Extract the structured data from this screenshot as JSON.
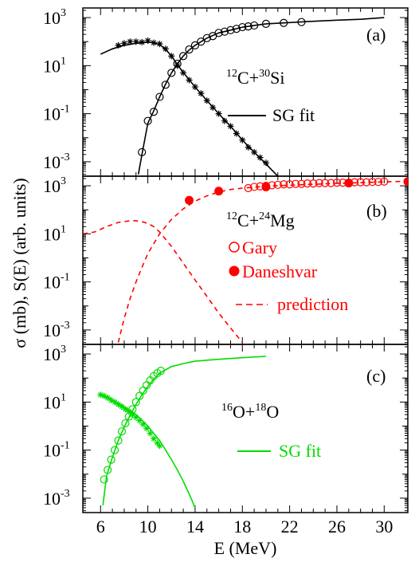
{
  "axes": {
    "xlabel": "E (MeV)",
    "ylabel": "σ (mb),  S(E) (arb. units)",
    "x_ticks": [
      "6",
      "10",
      "14",
      "18",
      "22",
      "26",
      "30"
    ],
    "x_tick_values": [
      6,
      10,
      14,
      18,
      22,
      26,
      30
    ],
    "y_ticks": [
      {
        "base": "10",
        "exp": "3"
      },
      {
        "base": "10",
        "exp": "1"
      },
      {
        "base": "10",
        "exp": "-1"
      },
      {
        "base": "10",
        "exp": "-3"
      }
    ]
  },
  "panels": [
    {
      "label": "(a)",
      "reaction": {
        "m1": "12",
        "e1": "C",
        "m2": "30",
        "e2": "Si"
      },
      "legend": [
        {
          "label": "SG fit",
          "style": "solid"
        }
      ],
      "color": "#000000"
    },
    {
      "label": "(b)",
      "reaction": {
        "m1": "12",
        "e1": "C",
        "m2": "24",
        "e2": "Mg"
      },
      "legend": [
        {
          "label": "Gary",
          "style": "open-circle"
        },
        {
          "label": "Daneshvar",
          "style": "filled-circle"
        },
        {
          "label": "prediction",
          "style": "dashed"
        }
      ],
      "color": "#ff0000"
    },
    {
      "label": "(c)",
      "reaction": {
        "m1": "16",
        "e1": "O",
        "m2": "18",
        "e2": "O"
      },
      "legend": [
        {
          "label": "SG fit",
          "style": "solid"
        }
      ],
      "color": "#00dd00"
    }
  ],
  "chart_data": [
    {
      "type": "line",
      "panel": "a",
      "xlim": [
        4.5,
        32
      ],
      "ylim_log10": [
        -3.6,
        3.4
      ],
      "series": [
        {
          "kind": "sigma-data",
          "marker": "open-circle",
          "x": [
            9.5,
            10.0,
            10.5,
            11.0,
            11.5,
            12.0,
            12.5,
            13.0,
            13.5,
            14.0,
            14.5,
            15.0,
            15.5,
            16.0,
            16.5,
            17.0,
            17.5,
            18.0,
            18.5,
            19.0,
            20.0,
            21.5,
            23.0
          ],
          "y": [
            0.0025,
            0.05,
            0.12,
            0.5,
            1.6,
            5,
            12,
            25,
            47,
            70,
            100,
            140,
            170,
            230,
            260,
            300,
            340,
            400,
            430,
            470,
            550,
            600,
            650
          ]
        },
        {
          "kind": "S-data",
          "marker": "star",
          "x": [
            7.5,
            8.0,
            8.5,
            9.0,
            9.5,
            10.0,
            10.5,
            11.0,
            11.5,
            12.0,
            12.5,
            13.0,
            13.5,
            14.0,
            14.5,
            15.0,
            15.5,
            16.0,
            16.5,
            17.0,
            17.5,
            18.0,
            18.5,
            19.0,
            19.5,
            20.0
          ],
          "y": [
            70,
            85,
            100,
            100,
            95,
            110,
            90,
            80,
            50,
            25,
            10,
            5,
            2.5,
            1.3,
            0.7,
            0.35,
            0.18,
            0.1,
            0.05,
            0.03,
            0.015,
            0.008,
            0.004,
            0.0025,
            0.0015,
            0.0009
          ]
        },
        {
          "kind": "sigma-fit",
          "style": "solid",
          "x": [
            9.2,
            9.5,
            10.0,
            10.5,
            11.0,
            11.5,
            12.0,
            12.5,
            13.0,
            13.5,
            14.0,
            15.0,
            16.0,
            17.0,
            18.0,
            19.0,
            20.0,
            22.0,
            24.0,
            26.0,
            28.0,
            30.0
          ],
          "y": [
            0.0003,
            0.002,
            0.04,
            0.13,
            0.5,
            1.7,
            5,
            12,
            25,
            45,
            70,
            140,
            230,
            300,
            400,
            470,
            550,
            620,
            700,
            780,
            850,
            1000
          ]
        },
        {
          "kind": "S-fit",
          "style": "solid",
          "x": [
            6.0,
            7.0,
            8.0,
            9.0,
            10.0,
            10.5,
            11.0,
            11.5,
            12.0,
            12.5,
            13.0,
            14.0,
            15.0,
            16.0,
            17.0,
            18.0,
            19.0,
            20.0,
            21.0
          ],
          "y": [
            30,
            50,
            70,
            85,
            95,
            90,
            75,
            48,
            25,
            11,
            5.2,
            1.3,
            0.35,
            0.1,
            0.03,
            0.008,
            0.0025,
            0.0008,
            0.00025
          ]
        }
      ]
    },
    {
      "type": "line",
      "panel": "b",
      "xlim": [
        4.5,
        32
      ],
      "ylim_log10": [
        -3.6,
        3.4
      ],
      "series": [
        {
          "kind": "Gary",
          "marker": "open-circle",
          "x": [
            18.5,
            19.0,
            19.5,
            20.0,
            20.5,
            21.0,
            21.5,
            22.0,
            22.5,
            23.0,
            23.5,
            24.0,
            24.5,
            25.0,
            25.5,
            26.0,
            26.5,
            27.0,
            27.5,
            28.0,
            28.5,
            29.0,
            29.5,
            30.0
          ],
          "y": [
            800,
            900,
            950,
            1000,
            1050,
            1100,
            1150,
            1150,
            1200,
            1200,
            1250,
            1250,
            1300,
            1300,
            1300,
            1350,
            1350,
            1350,
            1400,
            1400,
            1400,
            1450,
            1450,
            1500
          ]
        },
        {
          "kind": "Daneshvar",
          "marker": "filled-circle",
          "x": [
            13.5,
            16.0,
            20.0,
            27.0,
            32.0
          ],
          "y": [
            250,
            600,
            900,
            1300,
            1500
          ]
        },
        {
          "kind": "prediction-sigma",
          "style": "dashed",
          "x": [
            7.5,
            8.0,
            8.5,
            9.0,
            9.5,
            10.0,
            11.0,
            12.0,
            13.0,
            14.0,
            15.0,
            16.0,
            17.0,
            18.0,
            20.0,
            22.0,
            24.0,
            26.0,
            28.0,
            30.0,
            32.0
          ],
          "y": [
            0.0003,
            0.003,
            0.02,
            0.1,
            0.4,
            1.5,
            10,
            40,
            110,
            230,
            380,
            550,
            700,
            800,
            950,
            1050,
            1150,
            1250,
            1350,
            1450,
            1550
          ]
        },
        {
          "kind": "prediction-S",
          "style": "dashed",
          "x": [
            4.5,
            5.5,
            6.5,
            7.5,
            8.5,
            9.0,
            9.5,
            10.0,
            10.5,
            11.0,
            12.0,
            13.0,
            14.0,
            15.0,
            16.0,
            17.0,
            18.0
          ],
          "y": [
            10,
            12,
            20,
            30,
            35,
            35,
            32,
            27,
            20,
            12,
            3,
            0.6,
            0.12,
            0.025,
            0.005,
            0.0012,
            0.0003
          ]
        }
      ]
    },
    {
      "type": "line",
      "panel": "c",
      "xlim": [
        4.5,
        32
      ],
      "ylim_log10": [
        -3.6,
        3.4
      ],
      "series": [
        {
          "kind": "sigma-data",
          "marker": "open-circle",
          "x": [
            6.3,
            6.6,
            6.9,
            7.2,
            7.5,
            7.8,
            8.1,
            8.4,
            8.7,
            9.0,
            9.3,
            9.6,
            9.9,
            10.2,
            10.5,
            10.8,
            11.1
          ],
          "y": [
            0.006,
            0.015,
            0.04,
            0.1,
            0.25,
            0.6,
            1.3,
            2.5,
            5,
            10,
            18,
            30,
            50,
            80,
            120,
            160,
            200
          ]
        },
        {
          "kind": "S-data",
          "marker": "star",
          "x": [
            6.0,
            6.3,
            6.6,
            6.9,
            7.2,
            7.5,
            7.8,
            8.1,
            8.4,
            8.7,
            9.0,
            9.3,
            9.6,
            9.9,
            10.2,
            10.5,
            10.8,
            11.0
          ],
          "y": [
            20,
            18,
            15,
            12,
            10,
            8,
            6.5,
            5,
            4,
            3,
            2.3,
            1.7,
            1.2,
            0.8,
            0.5,
            0.3,
            0.2,
            0.15
          ]
        },
        {
          "kind": "sigma-fit",
          "style": "solid",
          "x": [
            6.2,
            6.5,
            7.0,
            7.5,
            8.0,
            8.5,
            9.0,
            9.5,
            10.0,
            10.5,
            11.0,
            12.0,
            13.0,
            14.0,
            16.0,
            18.0,
            20.0
          ],
          "y": [
            0.0005,
            0.008,
            0.05,
            0.25,
            0.9,
            2.8,
            8,
            20,
            45,
            90,
            160,
            300,
            400,
            500,
            600,
            700,
            800
          ]
        },
        {
          "kind": "S-fit",
          "style": "solid",
          "x": [
            6.0,
            6.5,
            7.0,
            7.5,
            8.0,
            8.5,
            9.0,
            9.5,
            10.0,
            10.5,
            11.0,
            11.5,
            12.0,
            12.5,
            13.0,
            13.5,
            14.0
          ],
          "y": [
            20,
            16,
            12,
            9,
            6.5,
            4.5,
            3,
            1.8,
            1,
            0.5,
            0.25,
            0.1,
            0.04,
            0.015,
            0.005,
            0.0015,
            0.0004
          ]
        }
      ]
    }
  ]
}
